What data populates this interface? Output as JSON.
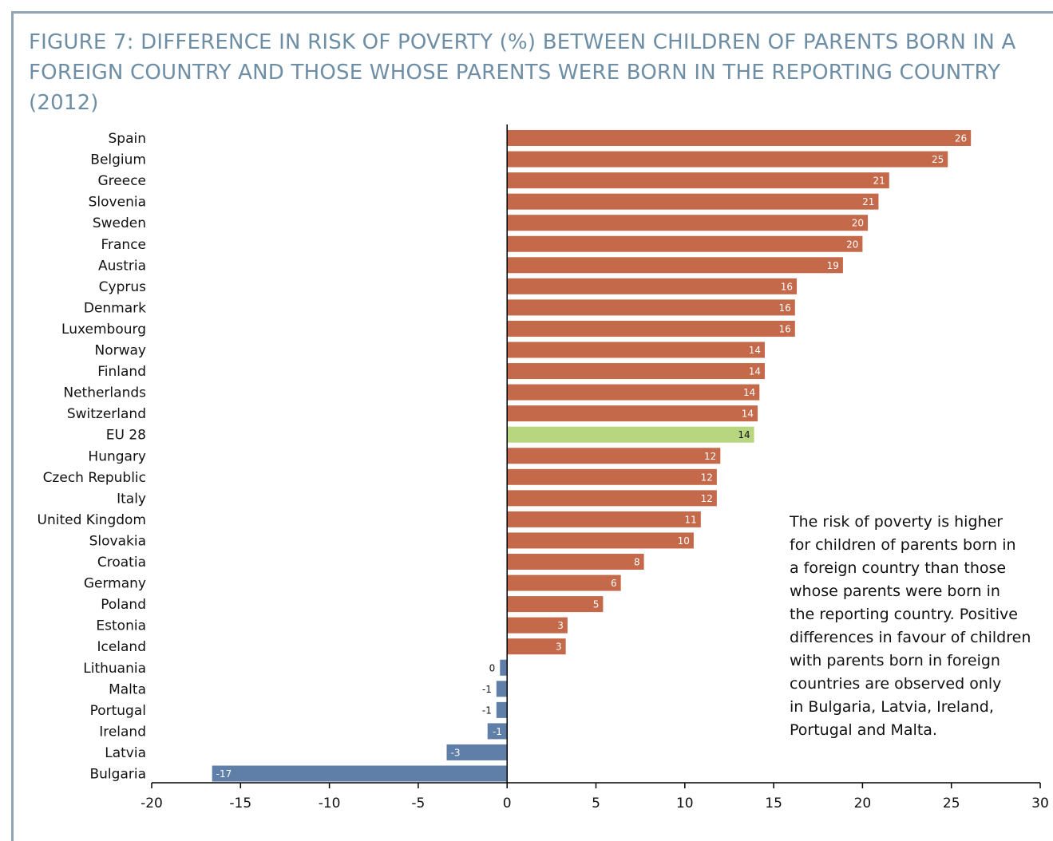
{
  "title": "FIGURE 7: DIFFERENCE IN RISK OF POVERTY (%) BETWEEN CHILDREN OF PARENTS BORN IN A FOREIGN COUNTRY AND THOSE WHOSE PARENTS WERE BORN IN THE REPORTING COUNTRY (2012)",
  "annotation": "The risk of poverty is higher\nfor children of parents born in\na foreign country than those\nwhose parents were born in\nthe reporting country. Positive\ndifferences in favour of children\nwith parents born in foreign\ncountries are observed only\nin Bulgaria, Latvia, Ireland,\nPortugal and Malta.",
  "colors": {
    "positive": "#c46a4a",
    "highlight": "#b8d57f",
    "negative": "#5f7fa8",
    "title": "#6d8ea5"
  },
  "chart_data": {
    "type": "bar",
    "orientation": "horizontal",
    "categories": [
      "Spain",
      "Belgium",
      "Greece",
      "Slovenia",
      "Sweden",
      "France",
      "Austria",
      "Cyprus",
      "Denmark",
      "Luxembourg",
      "Norway",
      "Finland",
      "Netherlands",
      "Switzerland",
      "EU 28",
      "Hungary",
      "Czech Republic",
      "Italy",
      "United Kingdom",
      "Slovakia",
      "Croatia",
      "Germany",
      "Poland",
      "Estonia",
      "Iceland",
      "Lithuania",
      "Malta",
      "Portugal",
      "Ireland",
      "Latvia",
      "Bulgaria"
    ],
    "values": [
      26.1,
      24.8,
      21.5,
      20.9,
      20.3,
      20.0,
      18.9,
      16.3,
      16.2,
      16.2,
      14.5,
      14.5,
      14.2,
      14.1,
      13.9,
      12.0,
      11.8,
      11.8,
      10.9,
      10.5,
      7.7,
      6.4,
      5.4,
      3.4,
      3.3,
      -0.4,
      -0.6,
      -0.6,
      -1.1,
      -3.4,
      -16.6
    ],
    "labels": [
      "26",
      "25",
      "21",
      "21",
      "20",
      "20",
      "19",
      "16",
      "16",
      "16",
      "14",
      "14",
      "14",
      "14",
      "14",
      "12",
      "12",
      "12",
      "11",
      "10",
      "8",
      "6",
      "5",
      "3",
      "3",
      "0",
      "-1",
      "-1",
      "-1",
      "-3",
      "-17"
    ],
    "highlight_category": "EU 28",
    "xlim": [
      -20,
      30
    ],
    "xticks": [
      -20,
      -15,
      -10,
      -5,
      0,
      5,
      10,
      15,
      20,
      25,
      30
    ],
    "xlabel": "",
    "ylabel": ""
  }
}
